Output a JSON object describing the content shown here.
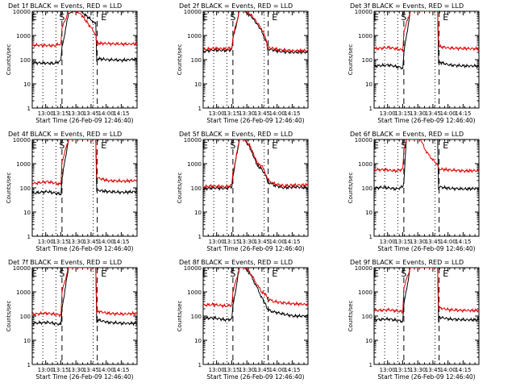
{
  "chart_data": {
    "type": "line",
    "layout": "3x3 grid",
    "y_scale": "log",
    "ylim": [
      1,
      10000
    ],
    "ylabel": "Counts/sec",
    "y_ticks": [
      "1",
      "10",
      "100",
      "1000",
      "10000"
    ],
    "x_ticks": [
      "13:00",
      "13:15",
      "13:30",
      "13:45",
      "14:00",
      "14:15"
    ],
    "xlabel": "Start Time (26-Feb-09 12:46:40)",
    "xlim_minutes_after_start": [
      0,
      104
    ],
    "x_tick_minutes_after_start": [
      13.33,
      28.33,
      43.33,
      58.33,
      73.33,
      88.33
    ],
    "markers": {
      "dotted_minutes_after_start": [
        10.5,
        23.5,
        60.5
      ],
      "dashed_minutes_after_start": [
        29.5,
        64.5
      ],
      "labels": [
        {
          "text": "E",
          "at_minute": 2
        },
        {
          "text": "S",
          "at_minute": 29.5
        },
        {
          "text": "E",
          "at_minute": 71
        }
      ]
    },
    "panels": [
      {
        "title": "Det 1f BLACK = Events, RED = LLD",
        "labels": [
          "E",
          "S",
          "E"
        ],
        "series": [
          {
            "color": "black",
            "x": [
              0,
              22,
              28.5,
              29.5,
              36,
              41,
              48,
              57,
              63,
              64,
              64.5,
              75,
              90,
              104
            ],
            "y": [
              75,
              70,
              90,
              300,
              8000,
              10000,
              10000,
              5000,
              3000,
              80,
              110,
              100,
              95,
              105
            ]
          },
          {
            "color": "red",
            "x": [
              0,
              22,
              28.5,
              29.5,
              36,
              41,
              48,
              57,
              63,
              64,
              64.5,
              75,
              90,
              104
            ],
            "y": [
              400,
              380,
              450,
              2000,
              10000,
              10000,
              8000,
              2500,
              1100,
              450,
              480,
              460,
              440,
              450
            ]
          }
        ]
      },
      {
        "title": "Det 2f BLACK = Events, RED = LLD",
        "labels": [
          "E",
          "S",
          "E"
        ],
        "series": [
          {
            "color": "black",
            "x": [
              0,
              10,
              22,
              28.5,
              29.5,
              36,
              41,
              48,
              57,
              63,
              64,
              64.5,
              75,
              90,
              104
            ],
            "y": [
              220,
              250,
              240,
              260,
              700,
              10000,
              10000,
              6000,
              1800,
              500,
              260,
              280,
              220,
              200,
              210
            ]
          },
          {
            "color": "red",
            "x": [
              0,
              10,
              22,
              28.5,
              29.5,
              36,
              41,
              48,
              57,
              63,
              64,
              64.5,
              75,
              90,
              104
            ],
            "y": [
              260,
              290,
              280,
              300,
              900,
              10000,
              10000,
              7000,
              2200,
              650,
              300,
              320,
              260,
              230,
              240
            ]
          }
        ]
      },
      {
        "title": "Det 3f BLACK = Events, RED = LLD",
        "labels": [
          "E",
          "S",
          "E"
        ],
        "series": [
          {
            "color": "black",
            "x": [
              0,
              15,
              28.5,
              29.5,
              36,
              41,
              48,
              57,
              63,
              64,
              64.5,
              75,
              90,
              104
            ],
            "y": [
              55,
              60,
              45,
              200,
              10000,
              10000,
              10000,
              10000,
              10000,
              70,
              80,
              60,
              55,
              55
            ]
          },
          {
            "color": "red",
            "x": [
              0,
              15,
              28.5,
              29.5,
              36,
              41,
              48,
              57,
              63,
              64,
              64.5,
              75,
              90,
              104
            ],
            "y": [
              280,
              320,
              250,
              1500,
              10000,
              10000,
              10000,
              10000,
              10000,
              400,
              350,
              300,
              290,
              280
            ]
          }
        ]
      },
      {
        "title": "Det 4f BLACK = Events, RED = LLD",
        "labels": [
          "E",
          "S",
          "E"
        ],
        "series": [
          {
            "color": "black",
            "x": [
              0,
              15,
              28.5,
              29.5,
              36,
              41,
              48,
              57,
              63,
              64,
              64.5,
              75,
              90,
              104
            ],
            "y": [
              60,
              70,
              55,
              250,
              10000,
              10000,
              10000,
              10000,
              10000,
              70,
              80,
              70,
              65,
              70
            ]
          },
          {
            "color": "red",
            "x": [
              0,
              15,
              28.5,
              29.5,
              36,
              41,
              48,
              57,
              63,
              64,
              64.5,
              75,
              90,
              104
            ],
            "y": [
              150,
              180,
              140,
              1200,
              10000,
              10000,
              10000,
              10000,
              10000,
              250,
              260,
              200,
              190,
              200
            ]
          }
        ]
      },
      {
        "title": "Det 5f BLACK = Events, RED = LLD",
        "labels": [
          "E",
          "S",
          "E"
        ],
        "series": [
          {
            "color": "black",
            "x": [
              0,
              10,
              22,
              28.5,
              29.5,
              36,
              41,
              46,
              50,
              54,
              58,
              61,
              64,
              70,
              80,
              90,
              104
            ],
            "y": [
              90,
              100,
              95,
              110,
              300,
              10000,
              10000,
              5000,
              2000,
              800,
              600,
              400,
              180,
              130,
              100,
              110,
              100
            ]
          },
          {
            "color": "red",
            "x": [
              0,
              10,
              22,
              28.5,
              29.5,
              36,
              41,
              46,
              50,
              54,
              58,
              61,
              64,
              70,
              80,
              90,
              104
            ],
            "y": [
              110,
              120,
              110,
              130,
              400,
              10000,
              10000,
              6000,
              2500,
              1000,
              800,
              500,
              220,
              150,
              120,
              130,
              130
            ]
          }
        ]
      },
      {
        "title": "Det 6f BLACK = Events, RED = LLD",
        "labels": [
          "E",
          "S",
          "E"
        ],
        "series": [
          {
            "color": "black",
            "x": [
              0,
              10,
              22,
              28.5,
              29.5,
              32,
              36,
              41,
              46,
              52,
              58,
              63,
              64,
              64.5,
              75,
              90,
              104
            ],
            "y": [
              100,
              105,
              90,
              110,
              180,
              10000,
              10000,
              10000,
              10000,
              10000,
              10000,
              10000,
              80,
              110,
              95,
              90,
              95
            ]
          },
          {
            "color": "red",
            "x": [
              0,
              10,
              22,
              28.5,
              29.5,
              32,
              36,
              41,
              46,
              52,
              58,
              63,
              64,
              64.5,
              75,
              90,
              104
            ],
            "y": [
              550,
              570,
              500,
              600,
              3500,
              10000,
              10000,
              10000,
              10000,
              3000,
              1500,
              900,
              700,
              600,
              550,
              500,
              520
            ]
          }
        ]
      },
      {
        "title": "Det 7f BLACK = Events, RED = LLD",
        "labels": [
          "E",
          "S",
          "E"
        ],
        "series": [
          {
            "color": "black",
            "x": [
              0,
              15,
              28.5,
              29.5,
              36,
              41,
              48,
              57,
              63,
              64,
              64.5,
              75,
              90,
              104
            ],
            "y": [
              50,
              55,
              45,
              200,
              10000,
              10000,
              10000,
              10000,
              10000,
              45,
              70,
              55,
              50,
              50
            ]
          },
          {
            "color": "red",
            "x": [
              0,
              15,
              28.5,
              29.5,
              36,
              41,
              48,
              57,
              63,
              64,
              64.5,
              75,
              90,
              104
            ],
            "y": [
              120,
              130,
              110,
              1000,
              10000,
              10000,
              10000,
              10000,
              10000,
              130,
              160,
              130,
              120,
              130
            ]
          }
        ]
      },
      {
        "title": "Det 8f BLACK = Events, RED = LLD",
        "labels": [
          "E",
          "S",
          "E"
        ],
        "series": [
          {
            "color": "black",
            "x": [
              0,
              10,
              22,
              28.5,
              29.5,
              36,
              41,
              46,
              52,
              58,
              62,
              64,
              70,
              80,
              90,
              104
            ],
            "y": [
              80,
              85,
              70,
              75,
              250,
              10000,
              10000,
              6000,
              2000,
              600,
              300,
              180,
              150,
              120,
              100,
              100
            ]
          },
          {
            "color": "red",
            "x": [
              0,
              10,
              22,
              28.5,
              29.5,
              36,
              41,
              46,
              52,
              58,
              62,
              64,
              70,
              80,
              90,
              104
            ],
            "y": [
              280,
              300,
              260,
              280,
              1000,
              10000,
              10000,
              7000,
              2500,
              1000,
              800,
              500,
              400,
              350,
              320,
              300
            ]
          }
        ]
      },
      {
        "title": "Det 9f BLACK = Events, RED = LLD",
        "labels": [
          "E",
          "S",
          "E"
        ],
        "series": [
          {
            "color": "black",
            "x": [
              0,
              15,
              28.5,
              29.5,
              36,
              41,
              48,
              57,
              63,
              64,
              64.5,
              75,
              90,
              104
            ],
            "y": [
              70,
              75,
              60,
              300,
              10000,
              10000,
              10000,
              10000,
              10000,
              60,
              90,
              75,
              70,
              70
            ]
          },
          {
            "color": "red",
            "x": [
              0,
              15,
              28.5,
              29.5,
              36,
              41,
              48,
              57,
              63,
              64,
              64.5,
              75,
              90,
              104
            ],
            "y": [
              170,
              180,
              150,
              1500,
              10000,
              10000,
              10000,
              10000,
              10000,
              200,
              220,
              180,
              170,
              170
            ]
          }
        ]
      }
    ]
  }
}
